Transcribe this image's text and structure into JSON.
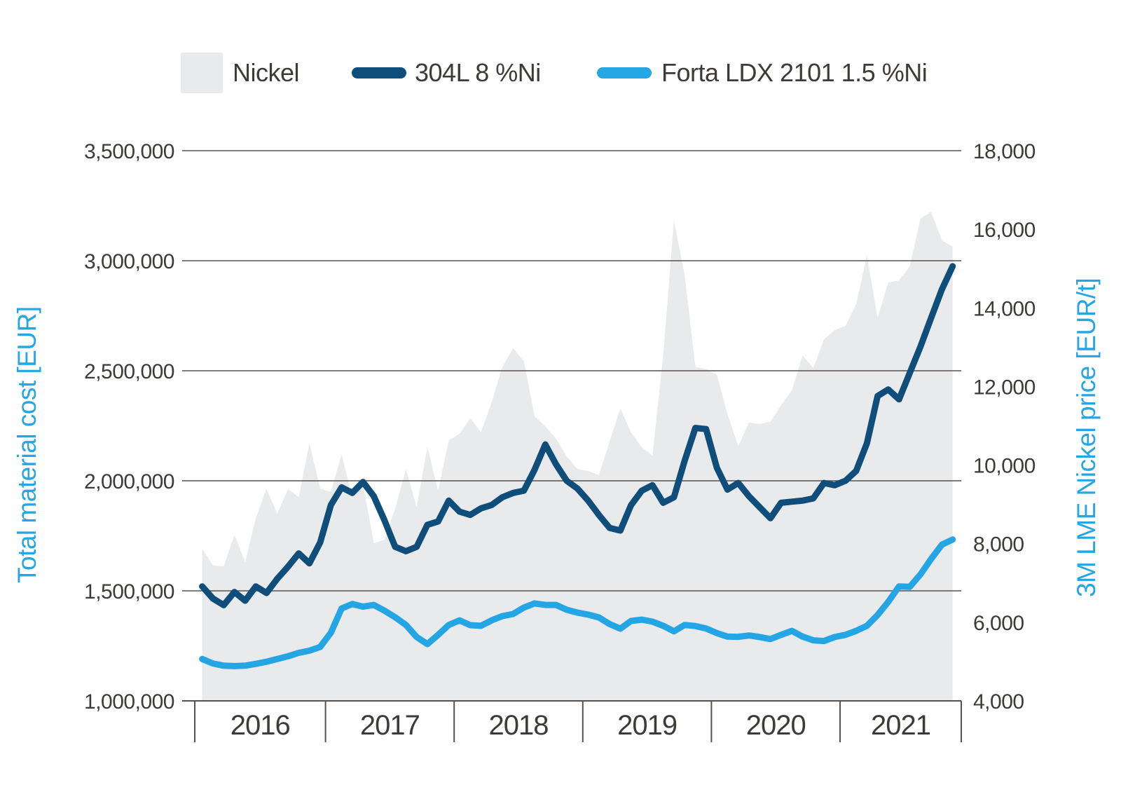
{
  "page": {
    "background": "#ffffff",
    "text_color": "#3D3B38",
    "grid_color": "#55514D"
  },
  "legend": {
    "nickel": {
      "label": "Nickel",
      "color": "#E9EAEB",
      "type": "area"
    },
    "l304": {
      "label": "304L 8 %Ni",
      "color": "#0F4D7A",
      "type": "line"
    },
    "forta": {
      "label": "Forta LDX 2101 1.5 %Ni",
      "color": "#24A5E4",
      "type": "line"
    }
  },
  "left_axis": {
    "title": "Total material cost [EUR]",
    "color": "#24A5E4",
    "min": 1000000,
    "max": 3500000,
    "tick_values": [
      3500000,
      3000000,
      2500000,
      2000000,
      1500000,
      1000000
    ],
    "tick_labels": [
      "3,500,000",
      "3,000,000",
      "2,500,000",
      "2,000,000",
      "1,500,000",
      "1,000,000"
    ]
  },
  "right_axis": {
    "title": "3M LME Nickel price [EUR/t]",
    "color": "#24A5E4",
    "min": 4000,
    "max": 18000,
    "tick_values": [
      18000,
      16000,
      14000,
      12000,
      10000,
      8000,
      6000,
      4000
    ],
    "tick_labels": [
      "18,000",
      "16,000",
      "14,000",
      "12,000",
      "10,000",
      "8,000",
      "6,000",
      "4,000"
    ]
  },
  "x_axis": {
    "years": [
      "2016",
      "2017",
      "2018",
      "2019",
      "2020",
      "2021"
    ]
  },
  "chart_data": {
    "type": "combo",
    "title": "",
    "x": {
      "interval": "monthly",
      "start": "2016-01",
      "end": "2021-11",
      "points": 71
    },
    "grid": "horizontal",
    "legend_position": "top",
    "series": [
      {
        "name": "Nickel",
        "type": "area",
        "axis": "right",
        "unit": "EUR/t",
        "color": "#E9EAEB",
        "values": [
          7870,
          7450,
          7420,
          8230,
          7530,
          8650,
          9390,
          8760,
          9390,
          9180,
          10560,
          9400,
          9320,
          10280,
          9170,
          9530,
          8010,
          8100,
          8900,
          9890,
          8940,
          10460,
          9350,
          10630,
          10800,
          11190,
          10830,
          11600,
          12500,
          12970,
          12650,
          11240,
          10990,
          10670,
          10220,
          9900,
          9850,
          9750,
          10600,
          11440,
          10830,
          10450,
          10250,
          12800,
          16220,
          14850,
          12500,
          12440,
          12300,
          11300,
          10480,
          11080,
          11045,
          11100,
          11525,
          11900,
          12790,
          12470,
          13200,
          13434,
          13540,
          14100,
          15325,
          13754,
          14646,
          14700,
          15057,
          16270,
          16447,
          15713,
          15560
        ]
      },
      {
        "name": "304L 8 %Ni",
        "type": "line",
        "axis": "left",
        "unit": "EUR",
        "color": "#0F4D7A",
        "values": [
          1520000,
          1465000,
          1435000,
          1495000,
          1455000,
          1520000,
          1490000,
          1555000,
          1610000,
          1670000,
          1625000,
          1720000,
          1890000,
          1970000,
          1945000,
          1995000,
          1930000,
          1820000,
          1700000,
          1680000,
          1700000,
          1800000,
          1815000,
          1910000,
          1860000,
          1845000,
          1875000,
          1890000,
          1925000,
          1945000,
          1955000,
          2050000,
          2165000,
          2075000,
          2000000,
          1965000,
          1910000,
          1845000,
          1786000,
          1774000,
          1889000,
          1955000,
          1980000,
          1900000,
          1925000,
          2090000,
          2240000,
          2235000,
          2060000,
          1960000,
          1990000,
          1930000,
          1880000,
          1830000,
          1900000,
          1905000,
          1910000,
          1920000,
          1990000,
          1980000,
          2000000,
          2045000,
          2170000,
          2385000,
          2415000,
          2370000,
          2490000,
          2610000,
          2740000,
          2870000,
          2975000
        ]
      },
      {
        "name": "Forta LDX 2101 1.5 %Ni",
        "type": "line",
        "axis": "left",
        "unit": "EUR",
        "color": "#24A5E4",
        "values": [
          1190000,
          1170000,
          1160000,
          1158000,
          1160000,
          1168000,
          1178000,
          1190000,
          1203000,
          1218000,
          1228000,
          1245000,
          1310000,
          1420000,
          1440000,
          1428000,
          1436000,
          1410000,
          1380000,
          1345000,
          1290000,
          1258000,
          1300000,
          1345000,
          1366000,
          1344000,
          1341000,
          1366000,
          1385000,
          1395000,
          1424000,
          1443000,
          1436000,
          1436000,
          1414000,
          1401000,
          1392000,
          1379000,
          1349000,
          1328000,
          1363000,
          1369000,
          1360000,
          1341000,
          1316000,
          1345000,
          1340000,
          1329000,
          1308000,
          1292000,
          1291000,
          1297000,
          1290000,
          1281000,
          1300000,
          1318000,
          1292000,
          1275000,
          1272000,
          1290000,
          1300000,
          1318000,
          1341000,
          1390000,
          1450000,
          1520000,
          1518000,
          1575000,
          1645000,
          1710000,
          1733000
        ]
      }
    ]
  }
}
